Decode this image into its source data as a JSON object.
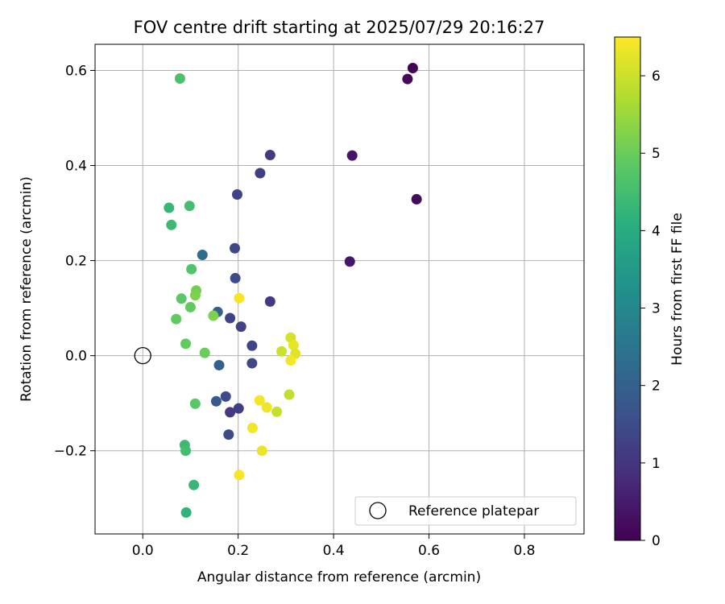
{
  "chart_data": {
    "type": "scatter",
    "title": "FOV centre drift starting at 2025/07/29 20:16:27",
    "xlabel": "Angular distance from reference (arcmin)",
    "ylabel": "Rotation from reference (arcmin)",
    "xlim": [
      -0.1,
      0.925
    ],
    "ylim": [
      -0.375,
      0.655
    ],
    "xticks": [
      0.0,
      0.2,
      0.4,
      0.6,
      0.8
    ],
    "xtick_labels": [
      "0.0",
      "0.2",
      "0.4",
      "0.6",
      "0.8"
    ],
    "yticks": [
      -0.2,
      0.0,
      0.2,
      0.4,
      0.6
    ],
    "ytick_labels": [
      "−0.2",
      "0.0",
      "0.2",
      "0.4",
      "0.6"
    ],
    "grid": true,
    "legend": {
      "position": "lower-right",
      "entries": [
        {
          "label": "Reference platepar",
          "marker": "open-circle",
          "x": 0.0,
          "y": 0.0
        }
      ]
    },
    "colorbar": {
      "label": "Hours from first FF file",
      "min": 0,
      "max": 6.5,
      "ticks": [
        0,
        1,
        2,
        3,
        4,
        5,
        6
      ],
      "tick_labels": [
        "0",
        "1",
        "2",
        "3",
        "4",
        "5",
        "6"
      ],
      "colormap": "viridis"
    },
    "points": [
      {
        "x": 0.566,
        "y": 0.605,
        "h": 0.05
      },
      {
        "x": 0.555,
        "y": 0.582,
        "h": 0.15
      },
      {
        "x": 0.574,
        "y": 0.329,
        "h": 0.2
      },
      {
        "x": 0.439,
        "y": 0.421,
        "h": 0.35
      },
      {
        "x": 0.434,
        "y": 0.198,
        "h": 0.4
      },
      {
        "x": 0.267,
        "y": 0.422,
        "h": 1.1
      },
      {
        "x": 0.246,
        "y": 0.384,
        "h": 1.2
      },
      {
        "x": 0.198,
        "y": 0.339,
        "h": 1.3
      },
      {
        "x": 0.193,
        "y": 0.226,
        "h": 1.4
      },
      {
        "x": 0.194,
        "y": 0.163,
        "h": 1.5
      },
      {
        "x": 0.267,
        "y": 0.114,
        "h": 1.1
      },
      {
        "x": 0.206,
        "y": 0.061,
        "h": 1.25
      },
      {
        "x": 0.183,
        "y": 0.079,
        "h": 1.3
      },
      {
        "x": 0.229,
        "y": 0.021,
        "h": 1.35
      },
      {
        "x": 0.229,
        "y": -0.016,
        "h": 1.4
      },
      {
        "x": 0.201,
        "y": -0.111,
        "h": 1.2
      },
      {
        "x": 0.183,
        "y": -0.119,
        "h": 1.1
      },
      {
        "x": 0.174,
        "y": -0.086,
        "h": 1.5
      },
      {
        "x": 0.154,
        "y": -0.096,
        "h": 1.8
      },
      {
        "x": 0.18,
        "y": -0.166,
        "h": 1.5
      },
      {
        "x": 0.16,
        "y": -0.02,
        "h": 2.0
      },
      {
        "x": 0.157,
        "y": 0.092,
        "h": 1.9
      },
      {
        "x": 0.125,
        "y": 0.212,
        "h": 2.3
      },
      {
        "x": 0.078,
        "y": 0.583,
        "h": 4.6
      },
      {
        "x": 0.055,
        "y": 0.311,
        "h": 4.3
      },
      {
        "x": 0.098,
        "y": 0.315,
        "h": 4.5
      },
      {
        "x": 0.06,
        "y": 0.275,
        "h": 4.4
      },
      {
        "x": 0.102,
        "y": 0.182,
        "h": 4.7
      },
      {
        "x": 0.112,
        "y": 0.137,
        "h": 5.1
      },
      {
        "x": 0.11,
        "y": 0.127,
        "h": 5.2
      },
      {
        "x": 0.081,
        "y": 0.12,
        "h": 4.8
      },
      {
        "x": 0.1,
        "y": 0.102,
        "h": 4.9
      },
      {
        "x": 0.07,
        "y": 0.077,
        "h": 4.9
      },
      {
        "x": 0.148,
        "y": 0.084,
        "h": 5.2
      },
      {
        "x": 0.09,
        "y": 0.025,
        "h": 4.9
      },
      {
        "x": 0.13,
        "y": 0.006,
        "h": 5.0
      },
      {
        "x": 0.11,
        "y": -0.101,
        "h": 4.8
      },
      {
        "x": 0.088,
        "y": -0.188,
        "h": 4.4
      },
      {
        "x": 0.09,
        "y": -0.2,
        "h": 4.5
      },
      {
        "x": 0.107,
        "y": -0.272,
        "h": 4.3
      },
      {
        "x": 0.091,
        "y": -0.33,
        "h": 4.2
      },
      {
        "x": 0.202,
        "y": 0.121,
        "h": 6.45
      },
      {
        "x": 0.31,
        "y": 0.038,
        "h": 6.1
      },
      {
        "x": 0.316,
        "y": 0.022,
        "h": 6.3
      },
      {
        "x": 0.291,
        "y": 0.009,
        "h": 6.0
      },
      {
        "x": 0.32,
        "y": 0.004,
        "h": 6.2
      },
      {
        "x": 0.31,
        "y": -0.01,
        "h": 6.4
      },
      {
        "x": 0.307,
        "y": -0.082,
        "h": 5.9
      },
      {
        "x": 0.281,
        "y": -0.118,
        "h": 5.95
      },
      {
        "x": 0.245,
        "y": -0.094,
        "h": 6.4
      },
      {
        "x": 0.26,
        "y": -0.109,
        "h": 6.35
      },
      {
        "x": 0.23,
        "y": -0.152,
        "h": 6.4
      },
      {
        "x": 0.25,
        "y": -0.2,
        "h": 6.3
      },
      {
        "x": 0.202,
        "y": -0.251,
        "h": 6.45
      }
    ]
  }
}
